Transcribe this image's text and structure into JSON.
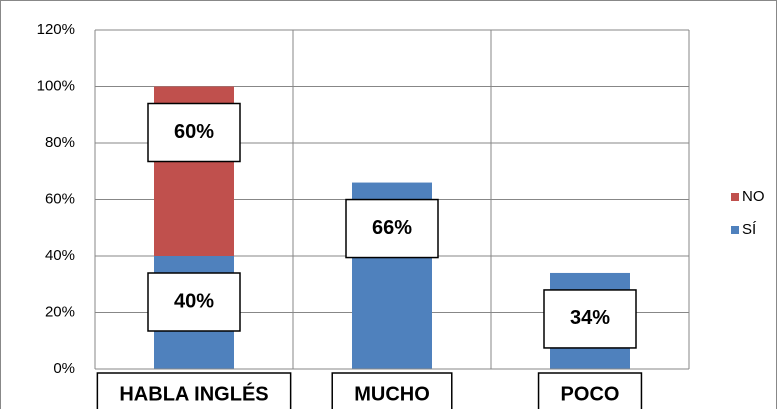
{
  "chart_data": {
    "type": "stacked_bar",
    "categories": [
      "HABLA INGLÉS",
      "MUCHO",
      "POCO"
    ],
    "series": [
      {
        "name": "SÍ",
        "color": "#4f81bd",
        "values": [
          40,
          66,
          34
        ],
        "value_labels": [
          "40%",
          "66%",
          "34%"
        ]
      },
      {
        "name": "NO",
        "color": "#c0504d",
        "values": [
          60,
          null,
          null
        ],
        "value_labels": [
          "60%",
          null,
          null
        ]
      }
    ],
    "ylim": [
      0,
      120
    ],
    "yticks": [
      {
        "value": 0,
        "label": "0%"
      },
      {
        "value": 20,
        "label": "20%"
      },
      {
        "value": 40,
        "label": "40%"
      },
      {
        "value": 60,
        "label": "60%"
      },
      {
        "value": 80,
        "label": "80%"
      },
      {
        "value": 100,
        "label": "100%"
      },
      {
        "value": 120,
        "label": "120%"
      }
    ],
    "grid": true,
    "legend": "right"
  }
}
